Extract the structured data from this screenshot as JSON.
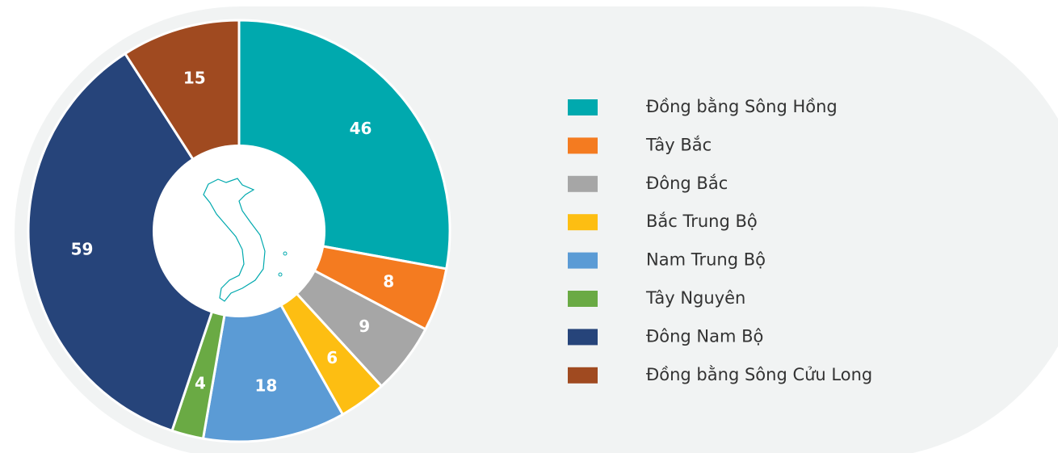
{
  "chart_data": {
    "type": "donut",
    "categories": [
      "Đồng bằng Sông Hồng",
      "Tây Bắc",
      "Đông Bắc",
      "Bắc Trung Bộ",
      "Nam Trung Bộ",
      "Tây Nguyên",
      "Đông Nam Bộ",
      "Đồng bằng Sông Cửu Long"
    ],
    "values": [
      46,
      8,
      9,
      6,
      18,
      4,
      59,
      15
    ],
    "colors": [
      "#00a9ae",
      "#f47b20",
      "#a6a6a6",
      "#fdbe12",
      "#5b9bd5",
      "#6aaa44",
      "#26447a",
      "#a04a20"
    ],
    "legend": "right"
  }
}
